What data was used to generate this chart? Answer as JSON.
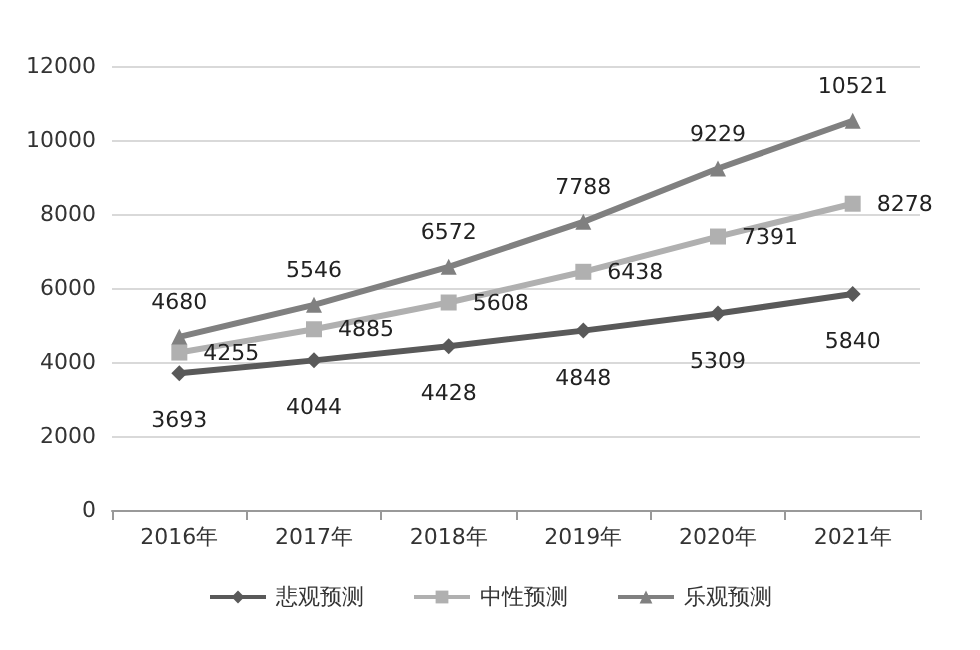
{
  "chart_data": {
    "type": "line",
    "categories": [
      "2016年",
      "2017年",
      "2018年",
      "2019年",
      "2020年",
      "2021年"
    ],
    "series": [
      {
        "name": "悲观预测",
        "color": "#595959",
        "values": [
          3693,
          4044,
          4428,
          4848,
          5309,
          5840
        ],
        "marker": "diamond"
      },
      {
        "name": "中性预测",
        "color": "#b0b0b0",
        "values": [
          4255,
          4885,
          5608,
          6438,
          7391,
          8278
        ],
        "marker": "square"
      },
      {
        "name": "乐观预测",
        "color": "#808080",
        "values": [
          4680,
          5546,
          6572,
          7788,
          9229,
          10521
        ],
        "marker": "triangle"
      }
    ],
    "ylim": [
      0,
      12000
    ],
    "yticks": [
      0,
      2000,
      4000,
      6000,
      8000,
      10000,
      12000
    ],
    "grid": "y",
    "legend": "bottom",
    "data_labels": true,
    "line_style": "solid"
  }
}
